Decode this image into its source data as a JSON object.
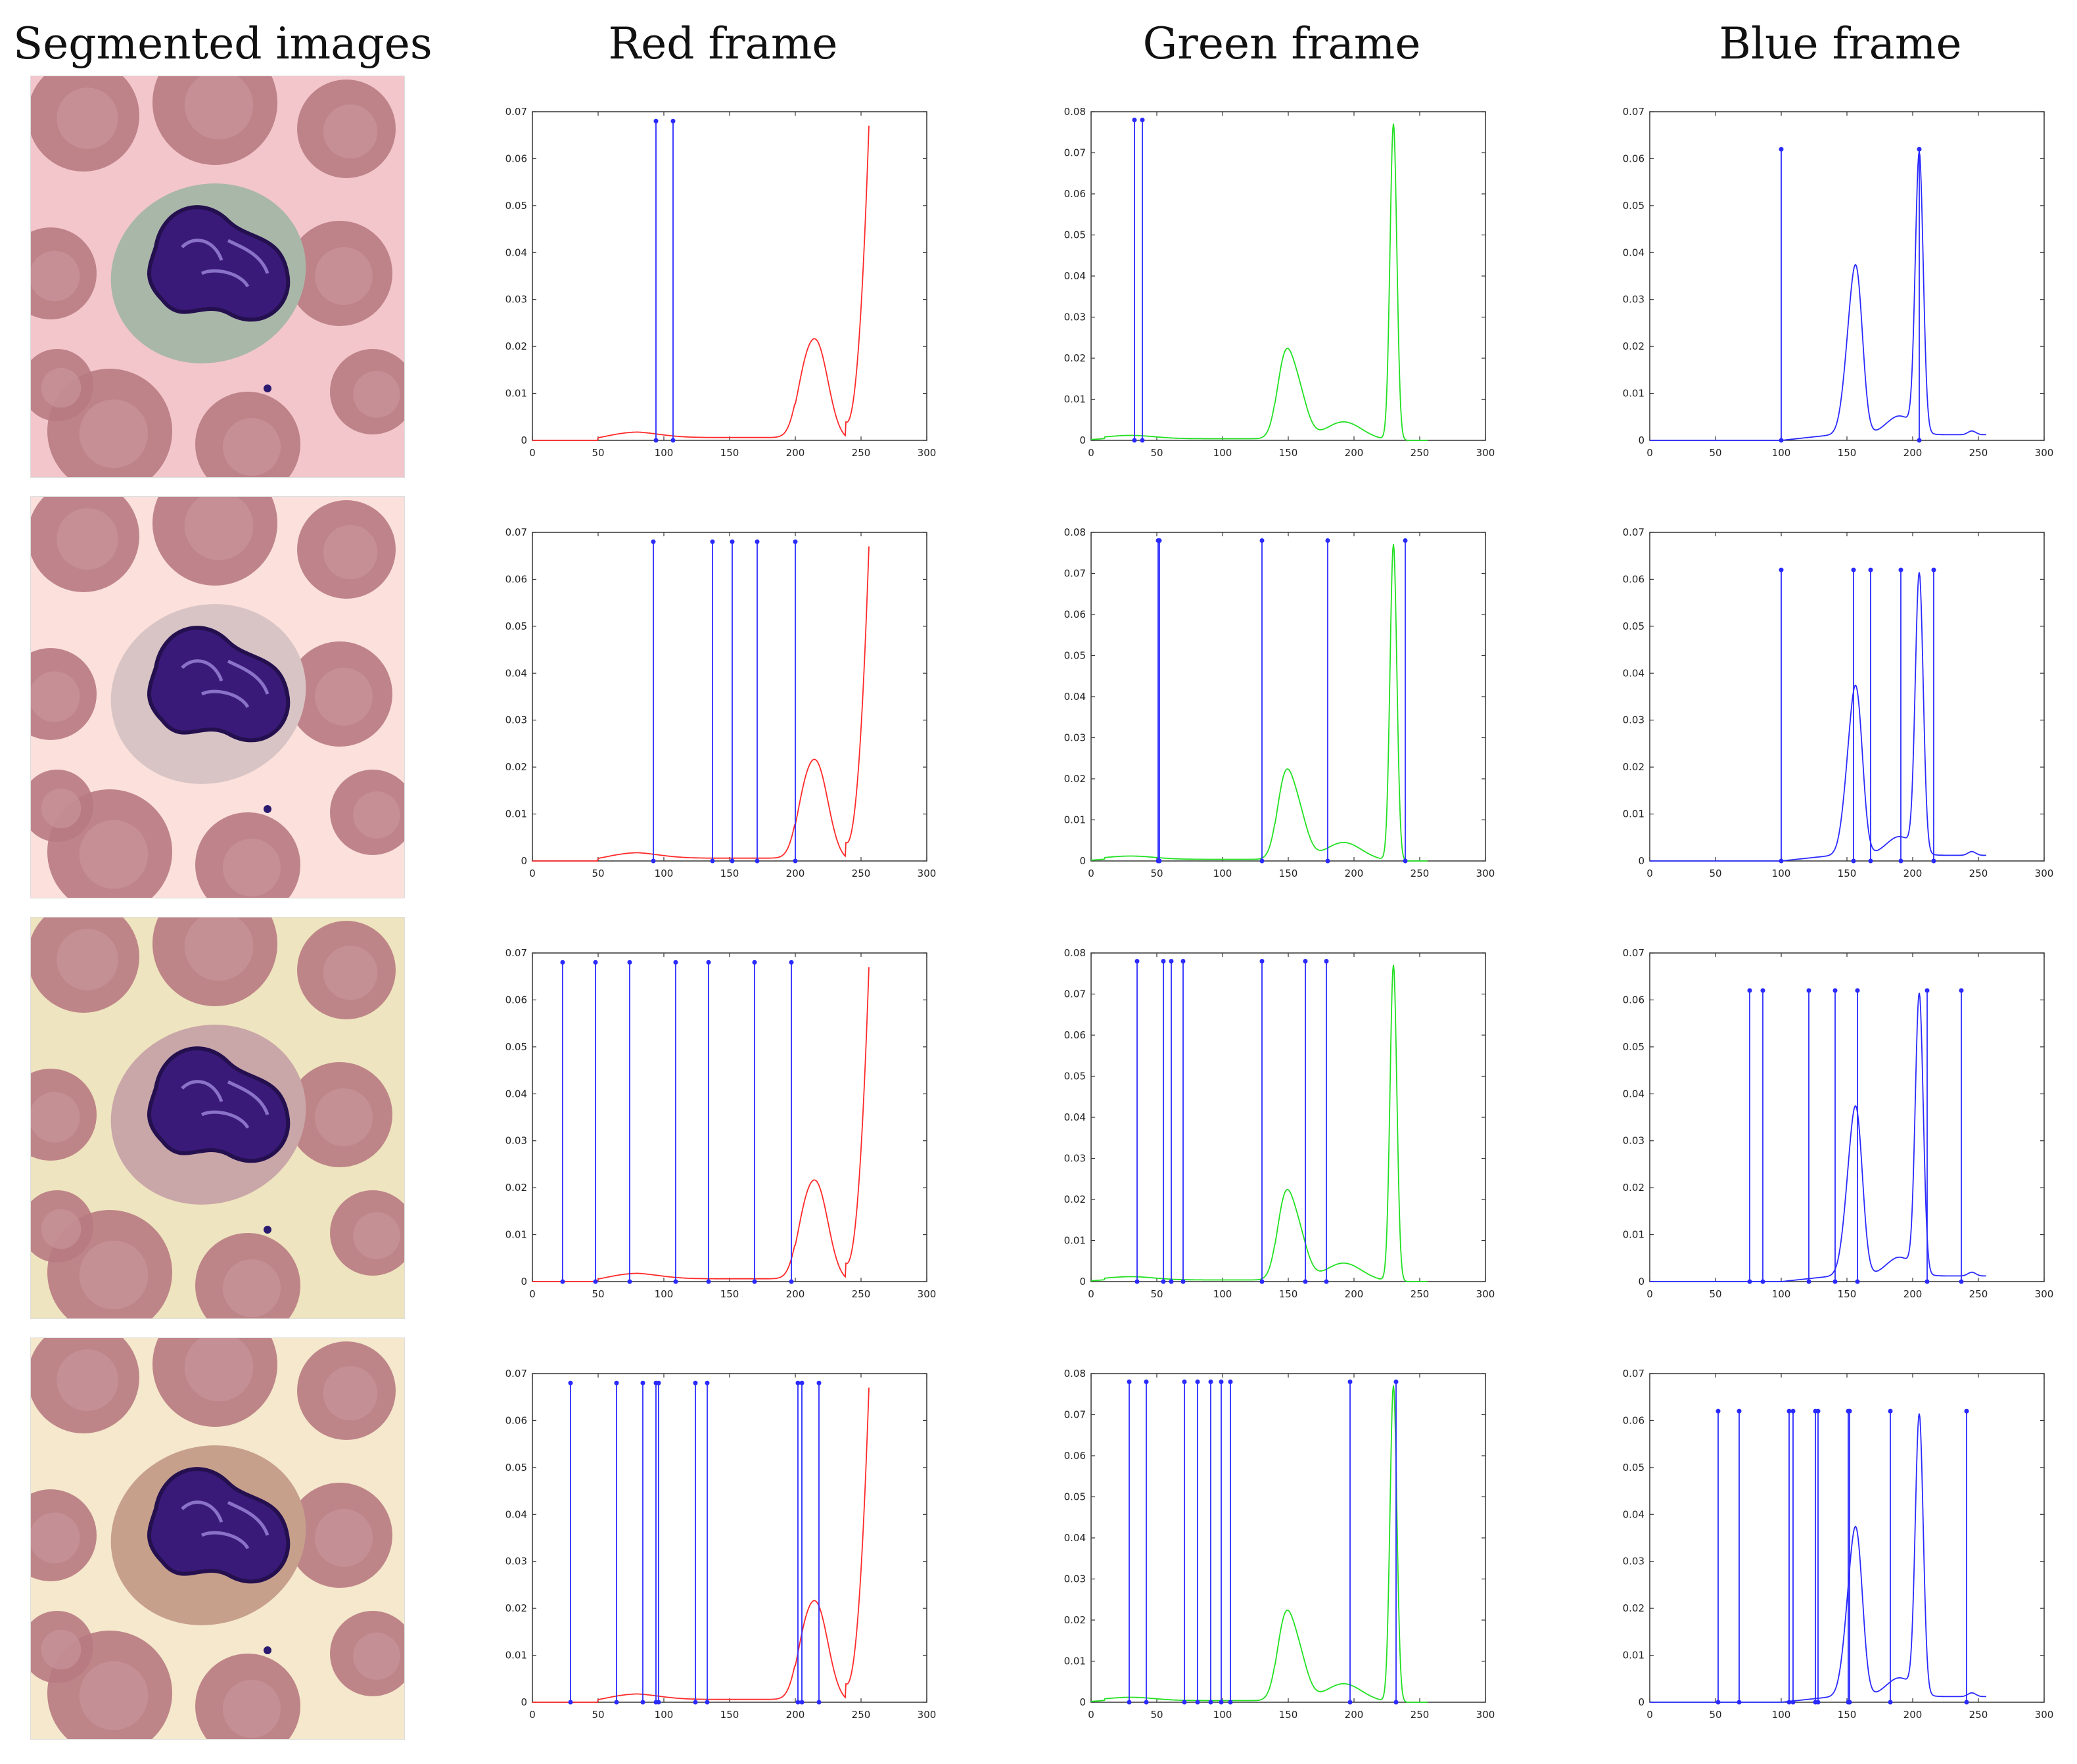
{
  "headers": [
    "Segmented images",
    "Red frame",
    "Green frame",
    "Blue frame"
  ],
  "backgrounds": [
    "#f2c6cb",
    "#fbe0dc",
    "#eee4bf",
    "#f5e8cc"
  ],
  "colors": {
    "red": "#ff2a2a",
    "green": "#22e022",
    "blue": "#2a2aff",
    "stem": "#2a2aff"
  },
  "chart_data": [
    {
      "type": "line",
      "panel": "Red frame",
      "row": 1,
      "xlim": [
        0,
        300
      ],
      "ylim": [
        0,
        0.07
      ],
      "curve": "red",
      "stem_height": 0.068,
      "stems": [
        94,
        107
      ]
    },
    {
      "type": "line",
      "panel": "Green frame",
      "row": 1,
      "xlim": [
        0,
        300
      ],
      "ylim": [
        0,
        0.08
      ],
      "curve": "green",
      "stem_height": 0.078,
      "stems": [
        33,
        39
      ]
    },
    {
      "type": "line",
      "panel": "Blue frame",
      "row": 1,
      "xlim": [
        0,
        300
      ],
      "ylim": [
        0,
        0.07
      ],
      "curve": "blue",
      "stem_height": 0.062,
      "stems": [
        100,
        205
      ]
    },
    {
      "type": "line",
      "panel": "Red frame",
      "row": 2,
      "xlim": [
        0,
        300
      ],
      "ylim": [
        0,
        0.07
      ],
      "curve": "red",
      "stem_height": 0.068,
      "stems": [
        92,
        137,
        152,
        171,
        200
      ]
    },
    {
      "type": "line",
      "panel": "Green frame",
      "row": 2,
      "xlim": [
        0,
        300
      ],
      "ylim": [
        0,
        0.08
      ],
      "curve": "green",
      "stem_height": 0.078,
      "stems": [
        51,
        52,
        130,
        180,
        239
      ]
    },
    {
      "type": "line",
      "panel": "Blue frame",
      "row": 2,
      "xlim": [
        0,
        300
      ],
      "ylim": [
        0,
        0.07
      ],
      "curve": "blue",
      "stem_height": 0.062,
      "stems": [
        100,
        155,
        168,
        191,
        216
      ]
    },
    {
      "type": "line",
      "panel": "Red frame",
      "row": 3,
      "xlim": [
        0,
        300
      ],
      "ylim": [
        0,
        0.07
      ],
      "curve": "red",
      "stem_height": 0.068,
      "stems": [
        23,
        48,
        74,
        109,
        134,
        169,
        197
      ]
    },
    {
      "type": "line",
      "panel": "Green frame",
      "row": 3,
      "xlim": [
        0,
        300
      ],
      "ylim": [
        0,
        0.08
      ],
      "curve": "green",
      "stem_height": 0.078,
      "stems": [
        35,
        55,
        61,
        70,
        130,
        163,
        179
      ]
    },
    {
      "type": "line",
      "panel": "Blue frame",
      "row": 3,
      "xlim": [
        0,
        300
      ],
      "ylim": [
        0,
        0.07
      ],
      "curve": "blue",
      "stem_height": 0.062,
      "stems": [
        76,
        86,
        121,
        141,
        158,
        211,
        237
      ]
    },
    {
      "type": "line",
      "panel": "Red frame",
      "row": 4,
      "xlim": [
        0,
        300
      ],
      "ylim": [
        0,
        0.07
      ],
      "curve": "red",
      "stem_height": 0.068,
      "stems": [
        29,
        64,
        84,
        94,
        96,
        124,
        133,
        202,
        205,
        218
      ]
    },
    {
      "type": "line",
      "panel": "Green frame",
      "row": 4,
      "xlim": [
        0,
        300
      ],
      "ylim": [
        0,
        0.08
      ],
      "curve": "green",
      "stem_height": 0.078,
      "stems": [
        29,
        42,
        71,
        81,
        91,
        99,
        106,
        197,
        232
      ]
    },
    {
      "type": "line",
      "panel": "Blue frame",
      "row": 4,
      "xlim": [
        0,
        300
      ],
      "ylim": [
        0,
        0.07
      ],
      "curve": "blue",
      "stem_height": 0.062,
      "stems": [
        52,
        68,
        106,
        109,
        126,
        128,
        151,
        152,
        183,
        241
      ]
    }
  ]
}
